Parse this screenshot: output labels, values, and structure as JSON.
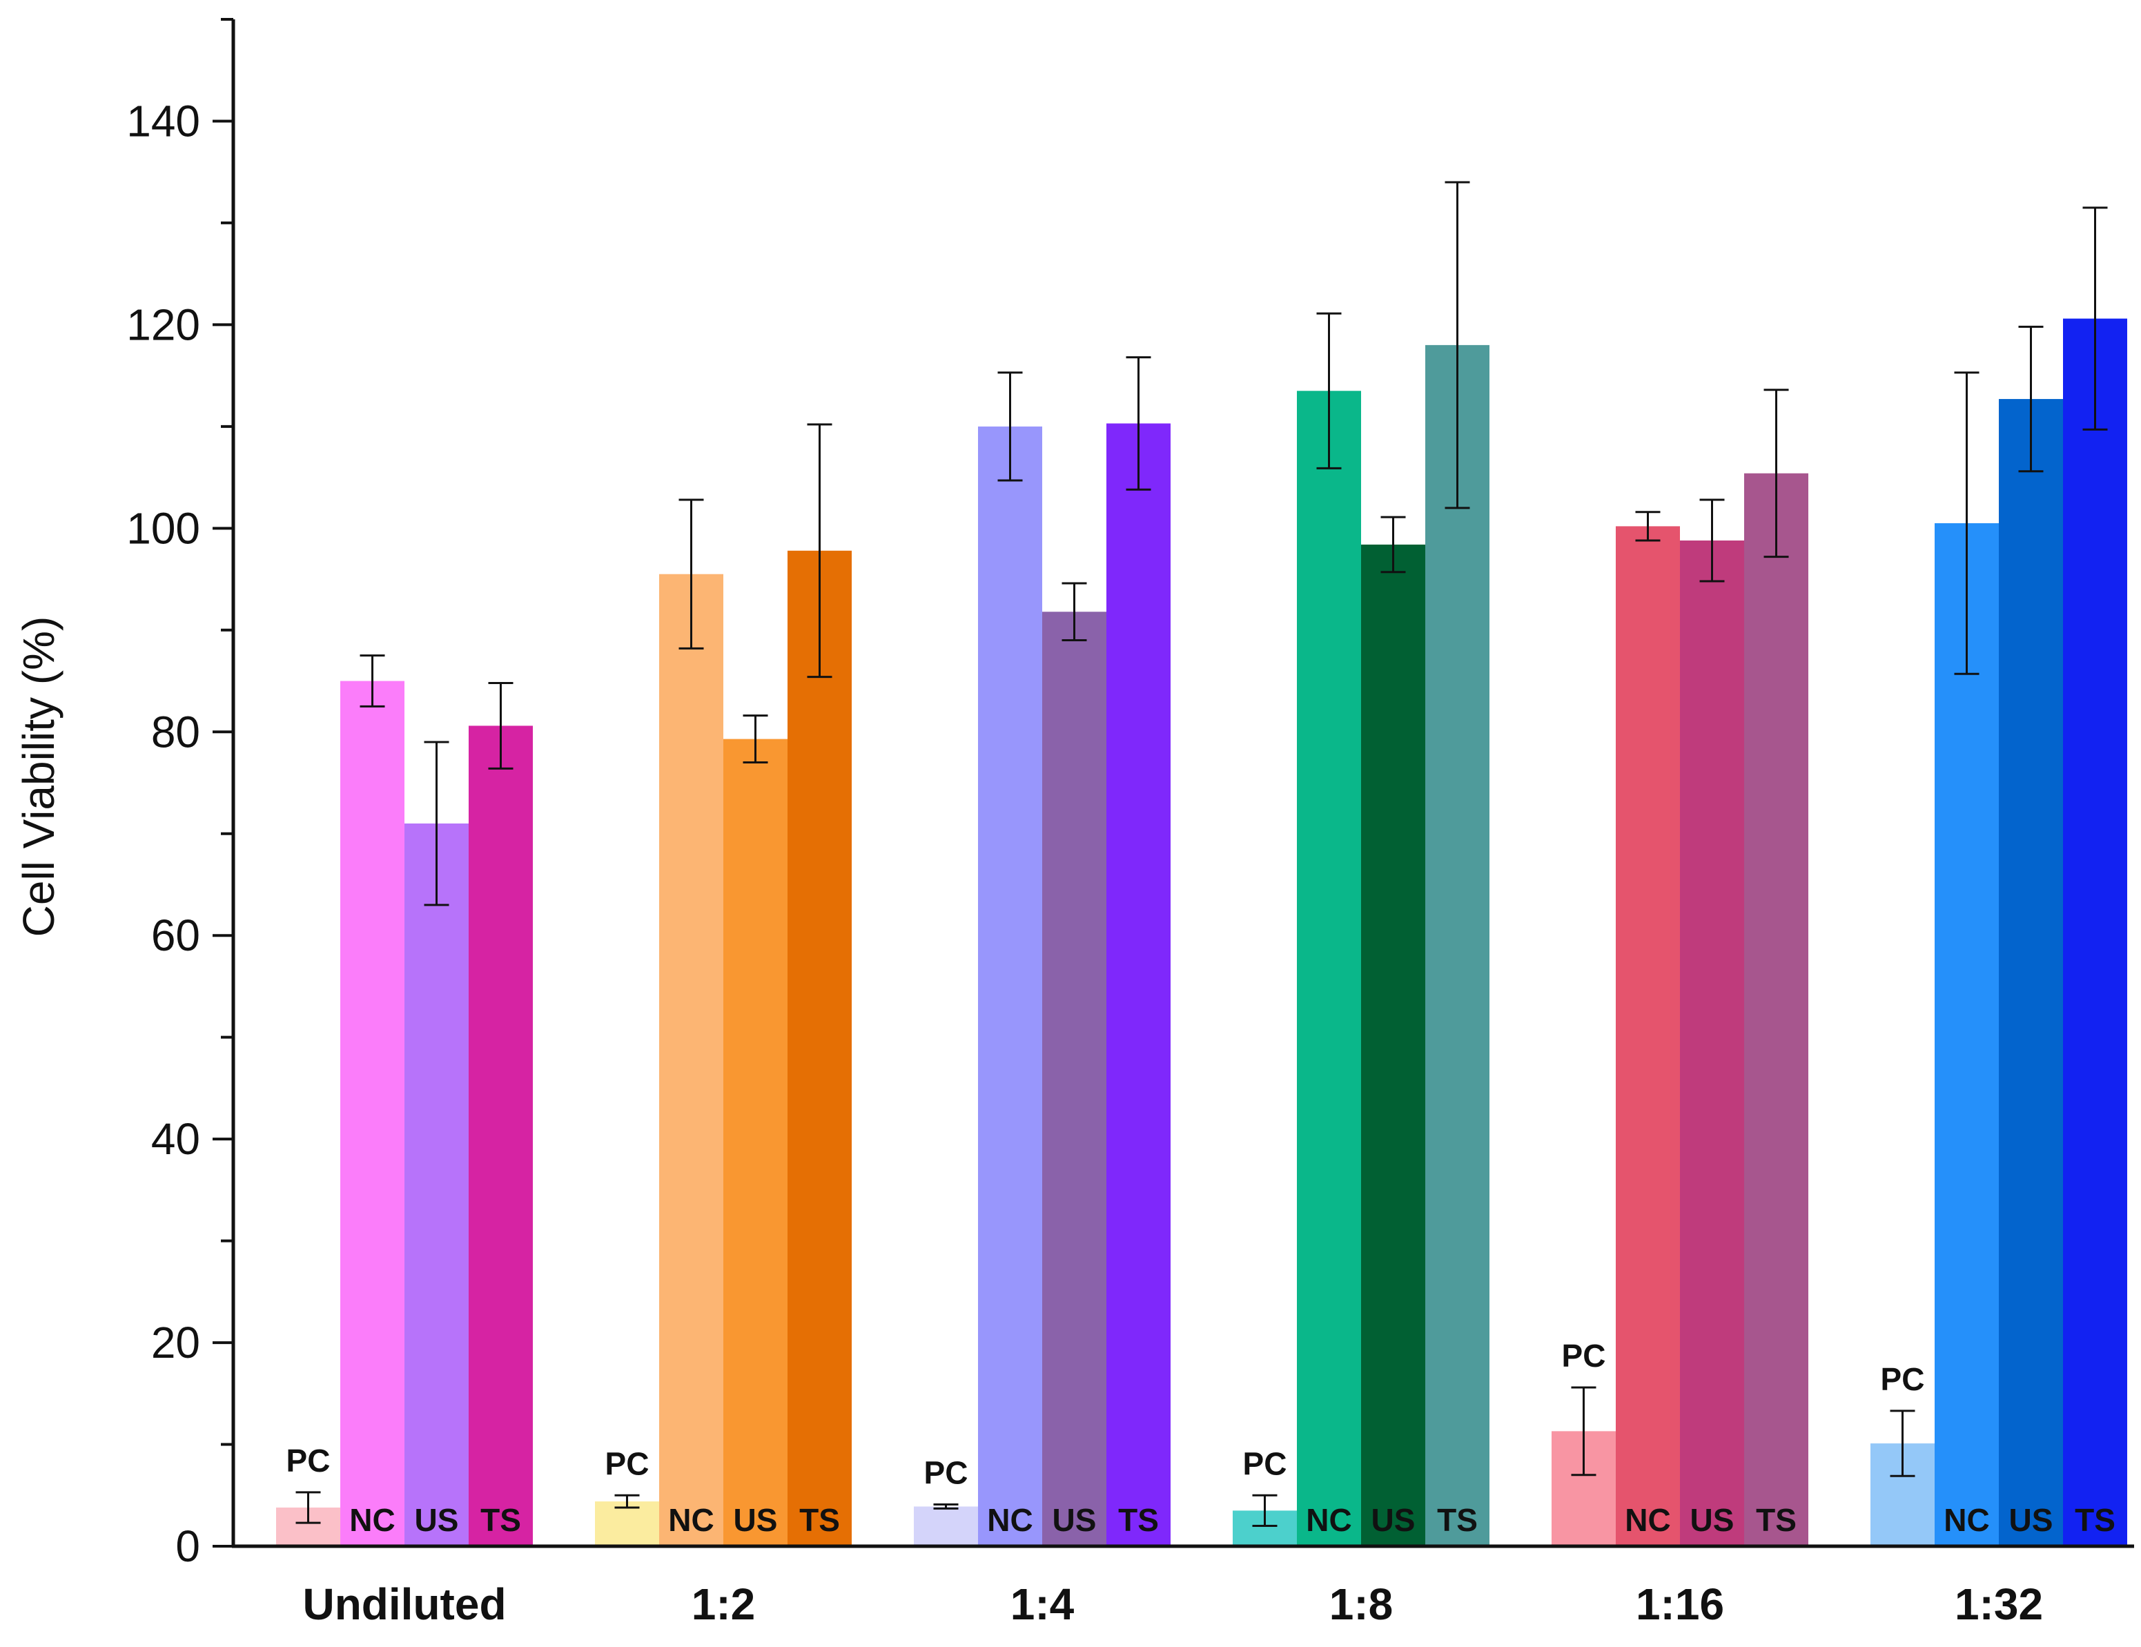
{
  "chart_data": {
    "type": "bar",
    "title": "",
    "xlabel": "",
    "ylabel": "Cell Viability (%)",
    "ylim": [
      0,
      150
    ],
    "yticks": [
      0,
      20,
      40,
      60,
      80,
      100,
      120,
      140
    ],
    "grid": false,
    "legend": "none",
    "categories": [
      "Undiluted",
      "1:2",
      "1:4",
      "1:8",
      "1:16",
      "1:32"
    ],
    "series": [
      {
        "name": "PC",
        "values": [
          3.8,
          4.4,
          3.9,
          3.5,
          11.3,
          10.1
        ],
        "errors": [
          1.5,
          0.6,
          0.2,
          1.5,
          4.3,
          3.2
        ],
        "colors": [
          "#fbc0c8",
          "#fbec9f",
          "#d4d4fa",
          "#4cd0cc",
          "#f895a3",
          "#94c8f8"
        ]
      },
      {
        "name": "NC",
        "values": [
          85.0,
          95.5,
          110.0,
          113.5,
          100.2,
          100.5
        ],
        "errors": [
          2.5,
          7.3,
          5.3,
          7.6,
          1.4,
          14.8
        ],
        "colors": [
          "#fb7dfa",
          "#fcb573",
          "#9896fc",
          "#0ab78a",
          "#e5546d",
          "#2590fa"
        ]
      },
      {
        "name": "US",
        "values": [
          71.0,
          79.3,
          91.8,
          98.4,
          98.8,
          112.7
        ],
        "errors": [
          8.0,
          2.3,
          2.8,
          2.7,
          4.0,
          7.1
        ],
        "colors": [
          "#b773fa",
          "#f99731",
          "#8a62aa",
          "#016033",
          "#bf3b7c",
          "#0364cd"
        ]
      },
      {
        "name": "TS",
        "values": [
          80.6,
          97.8,
          110.3,
          118.0,
          105.4,
          120.6
        ],
        "errors": [
          4.2,
          12.4,
          6.5,
          16.0,
          8.2,
          10.9
        ],
        "colors": [
          "#d623a3",
          "#e56f04",
          "#7f28fb",
          "#4f9b9b",
          "#a7568e",
          "#1222f2"
        ]
      }
    ],
    "bar_labels": [
      [
        "PC",
        "NC",
        "US",
        "TS"
      ],
      [
        "PC",
        "NC",
        "US",
        "TS"
      ],
      [
        "PC",
        "NC",
        "US",
        "TS"
      ],
      [
        "PC",
        "NC",
        "US",
        "TS"
      ],
      [
        "PC",
        "NC",
        "US",
        "TS"
      ],
      [
        "PC",
        "NC",
        "US",
        "TS"
      ]
    ]
  }
}
